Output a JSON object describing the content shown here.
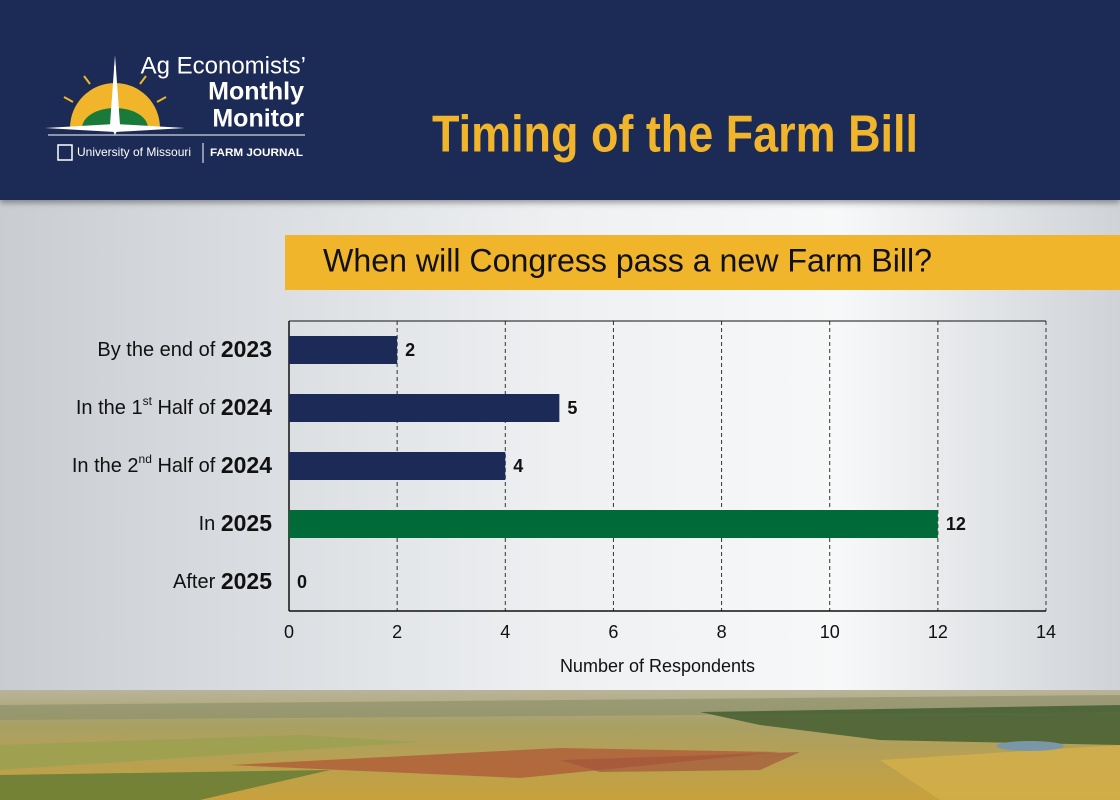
{
  "header": {
    "logo": {
      "line1": "Ag Economists’",
      "line2": "Monthly",
      "line3": "Monitor",
      "university": "University of Missouri",
      "partner": "FARM JOURNAL"
    },
    "title": "Timing of the Farm Bill"
  },
  "chart_data": {
    "type": "bar",
    "orientation": "horizontal",
    "title": "When will Congress pass a new Farm Bill?",
    "categories": [
      "By the end of 2023",
      "In the 1st Half of 2024",
      "In the 2nd Half of 2024",
      "In 2025",
      "After 2025"
    ],
    "values": [
      2,
      5,
      4,
      12,
      0
    ],
    "colors": [
      "#1b2a57",
      "#1b2a57",
      "#1b2a57",
      "#006a38",
      "#1b2a57"
    ],
    "xlabel": "Number of Respondents",
    "xlim": [
      0,
      14
    ],
    "xticks": [
      0,
      2,
      4,
      6,
      8,
      10,
      12,
      14
    ],
    "grid": true
  }
}
